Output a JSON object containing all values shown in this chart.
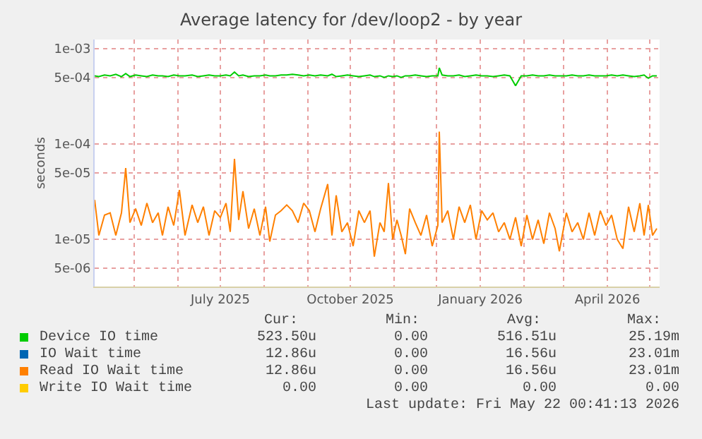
{
  "chart_data": {
    "type": "line",
    "title": "Average latency for /dev/loop2 - by year",
    "ylabel": "seconds",
    "x": [
      "2025-04-03",
      "2025-04-06",
      "2025-04-10",
      "2025-04-14",
      "2025-04-18",
      "2025-04-22",
      "2025-04-25",
      "2025-04-28",
      "2025-05-02",
      "2025-05-06",
      "2025-05-10",
      "2025-05-14",
      "2025-05-18",
      "2025-05-21",
      "2025-05-25",
      "2025-05-29",
      "2025-06-02",
      "2025-06-06",
      "2025-06-11",
      "2025-06-15",
      "2025-06-19",
      "2025-06-23",
      "2025-06-27",
      "2025-07-01",
      "2025-07-05",
      "2025-07-08",
      "2025-07-11",
      "2025-07-14",
      "2025-07-17",
      "2025-07-21",
      "2025-07-25",
      "2025-07-29",
      "2025-08-02",
      "2025-08-05",
      "2025-08-09",
      "2025-08-13",
      "2025-08-17",
      "2025-08-21",
      "2025-08-25",
      "2025-08-29",
      "2025-09-02",
      "2025-09-06",
      "2025-09-10",
      "2025-09-15",
      "2025-09-18",
      "2025-09-21",
      "2025-09-25",
      "2025-09-29",
      "2025-10-03",
      "2025-10-07",
      "2025-10-11",
      "2025-10-15",
      "2025-10-18",
      "2025-10-22",
      "2025-10-25",
      "2025-10-28",
      "2025-10-31",
      "2025-11-03",
      "2025-11-06",
      "2025-11-09",
      "2025-11-12",
      "2025-11-16",
      "2025-11-20",
      "2025-11-24",
      "2025-11-28",
      "2025-12-02",
      "2025-12-03",
      "2025-12-05",
      "2025-12-09",
      "2025-12-13",
      "2025-12-17",
      "2025-12-21",
      "2025-12-25",
      "2025-12-29",
      "2026-01-02",
      "2026-01-06",
      "2026-01-10",
      "2026-01-14",
      "2026-01-18",
      "2026-01-22",
      "2026-01-26",
      "2026-01-30",
      "2026-02-03",
      "2026-02-07",
      "2026-02-11",
      "2026-02-15",
      "2026-02-19",
      "2026-02-23",
      "2026-02-26",
      "2026-03-03",
      "2026-03-07",
      "2026-03-11",
      "2026-03-15",
      "2026-03-19",
      "2026-03-23",
      "2026-03-27",
      "2026-03-31",
      "2026-04-04",
      "2026-04-08",
      "2026-04-12",
      "2026-04-16",
      "2026-04-20",
      "2026-04-24",
      "2026-04-27",
      "2026-04-30",
      "2026-05-03",
      "2026-05-06"
    ],
    "series": [
      {
        "name": "Device IO time",
        "color": "#00cc00",
        "values": [
          0.00052,
          0.00051,
          0.00053,
          0.00052,
          0.00054,
          0.00051,
          0.00055,
          0.00051,
          0.00053,
          0.00052,
          0.00051,
          0.00053,
          0.00052,
          0.00052,
          0.00051,
          0.00053,
          0.00052,
          0.00052,
          0.00053,
          0.00051,
          0.00052,
          0.00053,
          0.00052,
          0.00052,
          0.00053,
          0.00052,
          0.00057,
          0.00052,
          0.00053,
          0.00051,
          0.00052,
          0.00052,
          0.00053,
          0.00052,
          0.00052,
          0.00053,
          0.00053,
          0.00054,
          0.00053,
          0.00052,
          0.00053,
          0.00052,
          0.00053,
          0.00052,
          0.00054,
          0.00051,
          0.00052,
          0.00053,
          0.00052,
          0.00051,
          0.00052,
          0.00053,
          0.00051,
          0.00052,
          0.0005,
          0.00052,
          0.00051,
          0.00052,
          0.0005,
          0.00052,
          0.00052,
          0.00053,
          0.00052,
          0.00051,
          0.00052,
          0.00052,
          0.00063,
          0.00053,
          0.00052,
          0.00052,
          0.00053,
          0.00051,
          0.00052,
          0.00053,
          0.00052,
          0.00052,
          0.00051,
          0.00052,
          0.00053,
          0.00052,
          0.00041,
          0.00052,
          0.00052,
          0.00053,
          0.00052,
          0.00052,
          0.00053,
          0.00052,
          0.00052,
          0.00052,
          0.00053,
          0.00052,
          0.00052,
          0.00053,
          0.00052,
          0.00052,
          0.00052,
          0.00053,
          0.00052,
          0.00053,
          0.00052,
          0.00051,
          0.00052,
          0.00053,
          0.00049,
          0.00052,
          0.00052
        ]
      },
      {
        "name": "IO Wait time",
        "color": "#0066b3",
        "values": [
          null,
          null,
          null,
          null,
          null,
          null,
          null,
          null,
          null,
          null,
          null,
          null,
          null,
          null,
          null,
          null,
          null,
          null,
          null,
          null,
          null,
          null,
          null,
          null,
          null,
          null,
          null,
          null,
          null,
          null,
          null,
          null,
          null,
          null,
          null,
          null,
          null,
          null,
          null,
          null,
          null,
          null,
          null,
          null,
          null,
          null,
          null,
          null,
          null,
          null,
          null,
          null,
          null,
          null,
          null,
          null,
          null,
          null,
          null,
          null,
          null,
          null,
          null,
          null,
          null,
          null,
          null,
          null,
          null,
          null,
          null,
          null,
          null,
          null,
          null,
          null,
          null,
          null,
          null,
          null,
          null,
          null,
          null,
          null,
          null,
          null,
          null,
          null,
          null,
          null,
          null,
          null,
          null,
          null,
          null,
          null,
          null,
          null,
          null,
          null,
          null,
          null,
          null,
          null,
          null,
          null,
          null
        ]
      },
      {
        "name": "Read IO Wait time",
        "color": "#ff8000",
        "values": [
          2.6e-05,
          1.1e-05,
          1.8e-05,
          1.9e-05,
          1.1e-05,
          1.9e-05,
          5.6e-05,
          1.5e-05,
          2.1e-05,
          1.4e-05,
          2.4e-05,
          1.5e-05,
          1.9e-05,
          1.1e-05,
          2.2e-05,
          1.4e-05,
          3.3e-05,
          1.1e-05,
          2.3e-05,
          1.5e-05,
          2.2e-05,
          1.1e-05,
          2e-05,
          1.7e-05,
          2.4e-05,
          1.2e-05,
          7e-05,
          1.6e-05,
          3.2e-05,
          1.3e-05,
          2.1e-05,
          1.1e-05,
          2.2e-05,
          9.5e-06,
          1.8e-05,
          2e-05,
          2.3e-05,
          2e-05,
          1.5e-05,
          2.4e-05,
          2e-05,
          1.2e-05,
          2.1e-05,
          3.8e-05,
          1.1e-05,
          2.9e-05,
          1.2e-05,
          1.5e-05,
          8.5e-06,
          2e-05,
          1.5e-05,
          2e-05,
          6.6e-06,
          1.5e-05,
          1.2e-05,
          3.9e-05,
          1e-05,
          1.6e-05,
          1.1e-05,
          7e-06,
          2.1e-05,
          1.5e-05,
          1.1e-05,
          1.8e-05,
          8.5e-06,
          1.4e-05,
          0.000135,
          1.5e-05,
          2e-05,
          1e-05,
          2.2e-05,
          1.5e-05,
          2.3e-05,
          1e-05,
          2e-05,
          1.6e-05,
          1.9e-05,
          1.2e-05,
          1.5e-05,
          1e-05,
          1.7e-05,
          8.5e-06,
          1.8e-05,
          1e-05,
          1.6e-05,
          9e-06,
          1.9e-05,
          1.3e-05,
          7.5e-06,
          1.9e-05,
          1.2e-05,
          1.5e-05,
          1e-05,
          1.9e-05,
          1.1e-05,
          2e-05,
          1.4e-05,
          1.8e-05,
          1e-05,
          8e-06,
          2.2e-05,
          1.2e-05,
          2.4e-05,
          1.1e-05,
          2.3e-05,
          1.1e-05,
          1.3e-05
        ]
      },
      {
        "name": "Write IO Wait time",
        "color": "#ffcc00",
        "values": [
          null,
          null,
          null,
          null,
          null,
          null,
          null,
          null,
          null,
          null,
          null,
          null,
          null,
          null,
          null,
          null,
          null,
          null,
          null,
          null,
          null,
          null,
          null,
          null,
          null,
          null,
          null,
          null,
          null,
          null,
          null,
          null,
          null,
          null,
          null,
          null,
          null,
          null,
          null,
          null,
          null,
          null,
          null,
          null,
          null,
          null,
          null,
          null,
          null,
          null,
          null,
          null,
          null,
          null,
          null,
          null,
          null,
          null,
          null,
          null,
          null,
          null,
          null,
          null,
          null,
          null,
          null,
          null,
          null,
          null,
          null,
          null,
          null,
          null,
          null,
          null,
          null,
          null,
          null,
          null,
          null,
          null,
          null,
          null,
          null,
          null,
          null,
          null,
          null,
          null,
          null,
          null,
          null,
          null,
          null,
          null,
          null,
          null,
          null,
          null,
          null,
          null,
          null,
          null,
          null,
          null,
          null
        ]
      }
    ],
    "xlim": [
      "2025-04-03",
      "2026-05-08"
    ],
    "xticks": [
      {
        "value": "2025-05-01",
        "label": null
      },
      {
        "value": "2025-06-01",
        "label": null
      },
      {
        "value": "2025-07-01",
        "label": "July 2025"
      },
      {
        "value": "2025-08-01",
        "label": null
      },
      {
        "value": "2025-09-01",
        "label": null
      },
      {
        "value": "2025-10-01",
        "label": "October 2025"
      },
      {
        "value": "2025-11-01",
        "label": null
      },
      {
        "value": "2025-12-01",
        "label": null
      },
      {
        "value": "2026-01-01",
        "label": "January 2026"
      },
      {
        "value": "2026-02-01",
        "label": null
      },
      {
        "value": "2026-03-01",
        "label": null
      },
      {
        "value": "2026-04-01",
        "label": "April 2026"
      },
      {
        "value": "2026-05-01",
        "label": null
      }
    ],
    "ylim": [
      3.2e-06,
      0.00125
    ],
    "yticks": [
      {
        "value": 0.001,
        "label": "1e-03"
      },
      {
        "value": 0.0005,
        "label": "5e-04"
      },
      {
        "value": 0.0001,
        "label": "1e-04"
      },
      {
        "value": 5e-05,
        "label": "5e-05"
      },
      {
        "value": 1e-05,
        "label": "1e-05"
      },
      {
        "value": 5e-06,
        "label": "5e-06"
      }
    ],
    "log": "y",
    "grid": true,
    "legend": "bottom",
    "annotations": [
      "Cur:",
      "Min:",
      "Avg:",
      "Max:",
      "523.50u",
      "0.00",
      "516.51u",
      "25.19m",
      "12.86u",
      "0.00",
      "16.56u",
      "23.01m",
      "12.86u",
      "0.00",
      "16.56u",
      "23.01m",
      "0.00",
      "0.00",
      "0.00",
      "0.00",
      "Last update: Fri May 22 00:41:13 2026"
    ]
  }
}
